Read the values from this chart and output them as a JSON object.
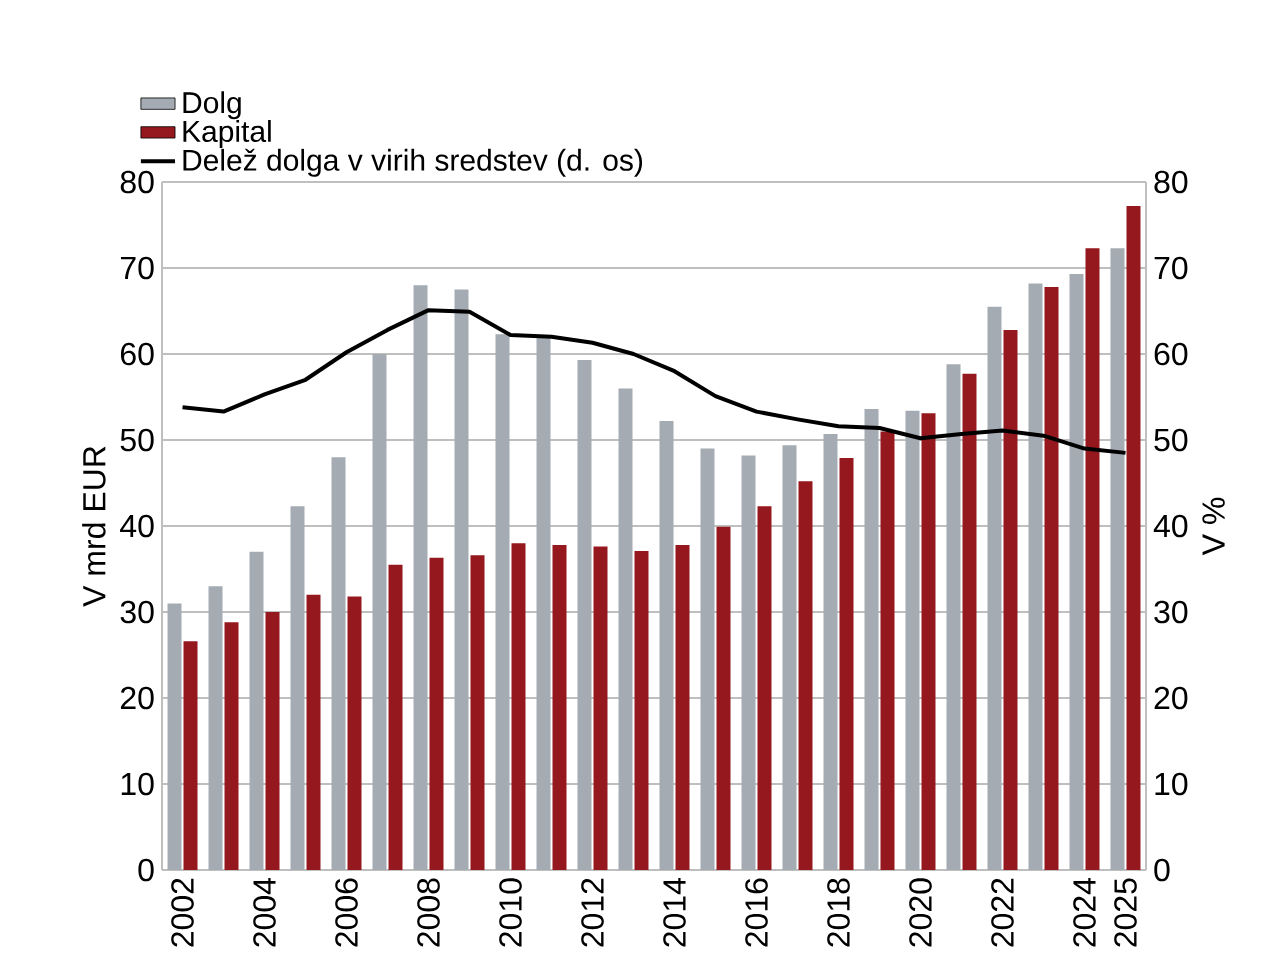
{
  "chart_data": {
    "type": "bar",
    "categories": [
      "2002",
      null,
      "2004",
      null,
      "2006",
      null,
      "2008",
      null,
      "2010",
      null,
      "2012",
      null,
      "2014",
      null,
      "2016",
      null,
      "2018",
      null,
      "2020",
      null,
      "2022",
      null,
      "2024",
      "2025"
    ],
    "series": [
      {
        "name": "Dolg",
        "color": "#a5abb2",
        "values": [
          31,
          33,
          37,
          42.3,
          48,
          60,
          68,
          67.5,
          62.3,
          62,
          59.3,
          56,
          52.2,
          49,
          48.2,
          49.4,
          50.7,
          53.6,
          53.4,
          58.8,
          65.5,
          68.2,
          69.3,
          72.3
        ]
      },
      {
        "name": "Kapital",
        "color": "#95181e",
        "values": [
          26.6,
          28.8,
          30,
          32,
          31.8,
          35.5,
          36.3,
          36.6,
          38,
          37.8,
          37.6,
          37.1,
          37.8,
          39.9,
          42.3,
          45.2,
          47.9,
          51,
          53.1,
          57.7,
          62.8,
          67.8,
          72.3,
          77.2
        ]
      },
      {
        "name": "Delež dolga v virih sredstev (d. os)",
        "color": "#000000",
        "type": "line",
        "axis": "y2",
        "values": [
          53.8,
          53.3,
          55.3,
          57,
          60.2,
          62.8,
          65.1,
          64.9,
          62.2,
          62,
          61.3,
          60,
          58,
          55.1,
          53.3,
          52.4,
          51.6,
          51.4,
          50.2,
          50.7,
          51.1,
          50.5,
          49,
          48.5
        ]
      }
    ],
    "ylabel": "V mrd EUR",
    "y2label": "V %",
    "ylim": [
      0,
      80
    ],
    "yticks": [
      0,
      10,
      20,
      30,
      40,
      50,
      60,
      70,
      80
    ],
    "y2lim": [
      0,
      80
    ],
    "y2ticks": [
      0,
      10,
      20,
      30,
      40,
      50,
      60,
      70,
      80
    ],
    "grid": "y",
    "legend": "top left"
  }
}
